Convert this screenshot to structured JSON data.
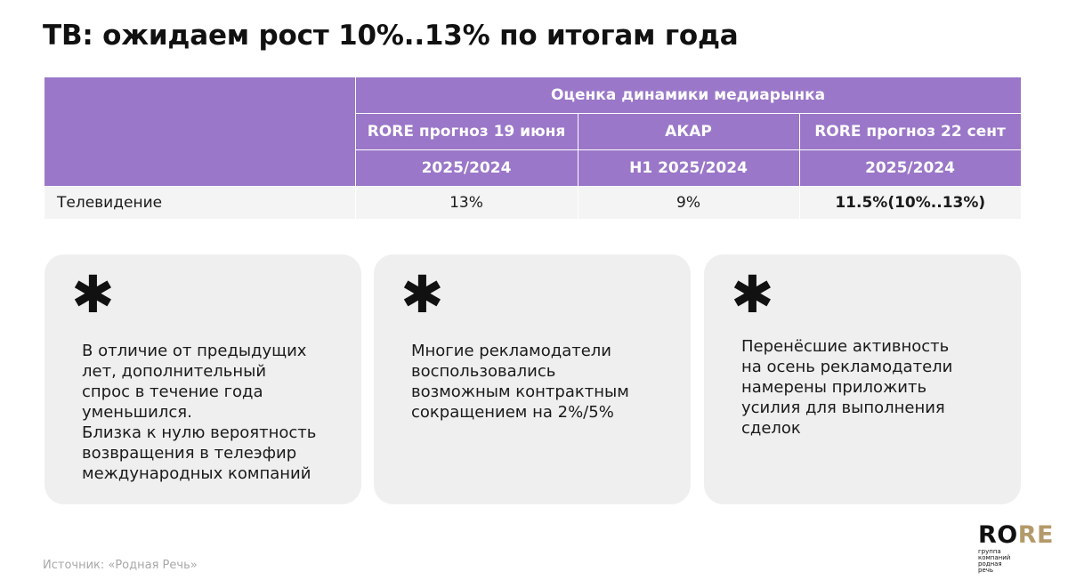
{
  "title": "ТВ: ожидаем рост 10%..13% по итогам года",
  "table": {
    "group_header": "Оценка динамики медиарынка",
    "columns": [
      {
        "name": "RORE прогноз 19 июня",
        "period": "2025/2024"
      },
      {
        "name": "АКАР",
        "period": "H1 2025/2024"
      },
      {
        "name": "RORE прогноз 22 сент",
        "period": "2025/2024"
      }
    ],
    "rows": [
      {
        "label": "Телевидение",
        "values": [
          "13%",
          "9%",
          "11.5%(10%..13%)"
        ]
      }
    ]
  },
  "cards": [
    {
      "icon": "asterisk",
      "lines": [
        "В отличие от предыдущих",
        "лет, дополнительный",
        "спрос в течение года",
        "уменьшился.",
        "Близка к нулю вероятность",
        "возвращения в телеэфир",
        "международных компаний"
      ]
    },
    {
      "icon": "asterisk",
      "lines": [
        "Многие рекламодатели",
        "воспользовались",
        "возможным контрактным",
        "сокращением на 2%/5%"
      ]
    },
    {
      "icon": "asterisk",
      "lines": [
        "Перенёсшие активность",
        "на осень рекламодатели",
        "намерены приложить",
        "усилия для выполнения",
        "сделок"
      ]
    }
  ],
  "source": "Источник: «Родная Речь»",
  "logo": {
    "word_part1": "RO",
    "word_part2": "RE",
    "tagline": [
      "группа",
      "компаний",
      "родная",
      "речь"
    ]
  },
  "colors": {
    "header_bg": "#9a77c8",
    "card_bg": "#efefef",
    "logo_accent": "#b49a6a"
  }
}
